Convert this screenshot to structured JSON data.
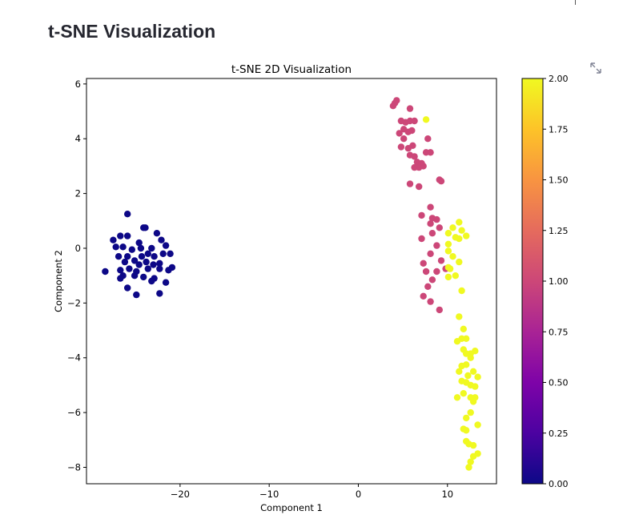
{
  "page": {
    "title": "t-SNE Visualization"
  },
  "chart_data": {
    "type": "scatter",
    "title": "t-SNE 2D Visualization",
    "xlabel": "Component 1",
    "ylabel": "Component 2",
    "xlim": [
      -30.5,
      15.5
    ],
    "ylim": [
      -8.6,
      6.2
    ],
    "xticks": [
      -20,
      -10,
      0,
      10
    ],
    "xtick_labels": [
      "−20",
      "−10",
      "0",
      "10"
    ],
    "yticks": [
      6,
      4,
      2,
      0,
      -2,
      -4,
      -6,
      -8
    ],
    "ytick_labels": [
      "6",
      "4",
      "2",
      "0",
      "−2",
      "−4",
      "−6",
      "−8"
    ],
    "colormap": "plasma",
    "colorbar": {
      "range": [
        0,
        2
      ],
      "ticks": [
        0,
        0.25,
        0.5,
        0.75,
        1.0,
        1.25,
        1.5,
        1.75,
        2.0
      ],
      "tick_labels": [
        "0.00",
        "0.25",
        "0.50",
        "0.75",
        "1.00",
        "1.25",
        "1.50",
        "1.75",
        "2.00"
      ]
    },
    "grid": false,
    "colors": {
      "class_0": "#0d0887",
      "class_1": "#cc4778",
      "class_2": "#f0f921"
    },
    "points": [
      {
        "x": -25.9,
        "y": 1.25,
        "c": 0
      },
      {
        "x": -23.9,
        "y": 0.75,
        "c": 0
      },
      {
        "x": -24.1,
        "y": 0.75,
        "c": 0
      },
      {
        "x": -27.5,
        "y": 0.3,
        "c": 0
      },
      {
        "x": -26.7,
        "y": 0.45,
        "c": 0
      },
      {
        "x": -25.9,
        "y": 0.45,
        "c": 0
      },
      {
        "x": -24.6,
        "y": 0.2,
        "c": 0
      },
      {
        "x": -22.6,
        "y": 0.55,
        "c": 0
      },
      {
        "x": -22.1,
        "y": 0.3,
        "c": 0
      },
      {
        "x": -27.2,
        "y": 0.05,
        "c": 0
      },
      {
        "x": -26.4,
        "y": 0.05,
        "c": 0
      },
      {
        "x": -25.4,
        "y": -0.05,
        "c": 0
      },
      {
        "x": -24.4,
        "y": 0.0,
        "c": 0
      },
      {
        "x": -23.2,
        "y": 0.0,
        "c": 0
      },
      {
        "x": -21.6,
        "y": 0.1,
        "c": 0
      },
      {
        "x": -26.9,
        "y": -0.3,
        "c": 0
      },
      {
        "x": -25.9,
        "y": -0.3,
        "c": 0
      },
      {
        "x": -25.1,
        "y": -0.45,
        "c": 0
      },
      {
        "x": -24.3,
        "y": -0.3,
        "c": 0
      },
      {
        "x": -23.6,
        "y": -0.2,
        "c": 0
      },
      {
        "x": -22.9,
        "y": -0.3,
        "c": 0
      },
      {
        "x": -21.9,
        "y": -0.2,
        "c": 0
      },
      {
        "x": -21.1,
        "y": -0.2,
        "c": 0
      },
      {
        "x": -26.2,
        "y": -0.5,
        "c": 0
      },
      {
        "x": -24.6,
        "y": -0.6,
        "c": 0
      },
      {
        "x": -23.8,
        "y": -0.5,
        "c": 0
      },
      {
        "x": -23.0,
        "y": -0.6,
        "c": 0
      },
      {
        "x": -22.3,
        "y": -0.55,
        "c": 0
      },
      {
        "x": -20.9,
        "y": -0.7,
        "c": 0
      },
      {
        "x": -28.4,
        "y": -0.85,
        "c": 0
      },
      {
        "x": -26.7,
        "y": -0.8,
        "c": 0
      },
      {
        "x": -25.7,
        "y": -0.75,
        "c": 0
      },
      {
        "x": -24.9,
        "y": -0.85,
        "c": 0
      },
      {
        "x": -23.6,
        "y": -0.75,
        "c": 0
      },
      {
        "x": -22.3,
        "y": -0.75,
        "c": 0
      },
      {
        "x": -21.3,
        "y": -0.8,
        "c": 0
      },
      {
        "x": -26.4,
        "y": -1.0,
        "c": 0
      },
      {
        "x": -25.1,
        "y": -1.0,
        "c": 0
      },
      {
        "x": -24.1,
        "y": -1.05,
        "c": 0
      },
      {
        "x": -22.9,
        "y": -1.1,
        "c": 0
      },
      {
        "x": -21.6,
        "y": -1.25,
        "c": 0
      },
      {
        "x": -26.7,
        "y": -1.1,
        "c": 0
      },
      {
        "x": -25.9,
        "y": -1.45,
        "c": 0
      },
      {
        "x": -24.9,
        "y": -1.7,
        "c": 0
      },
      {
        "x": -22.3,
        "y": -1.65,
        "c": 0
      },
      {
        "x": -23.2,
        "y": -1.2,
        "c": 0
      },
      {
        "x": 4.3,
        "y": 5.4,
        "c": 1
      },
      {
        "x": 3.9,
        "y": 5.2,
        "c": 1
      },
      {
        "x": 4.1,
        "y": 5.3,
        "c": 1
      },
      {
        "x": 5.8,
        "y": 5.1,
        "c": 1
      },
      {
        "x": 4.8,
        "y": 4.65,
        "c": 1
      },
      {
        "x": 5.3,
        "y": 4.6,
        "c": 1
      },
      {
        "x": 5.8,
        "y": 4.65,
        "c": 1
      },
      {
        "x": 6.3,
        "y": 4.65,
        "c": 1
      },
      {
        "x": 5.1,
        "y": 4.35,
        "c": 1
      },
      {
        "x": 4.6,
        "y": 4.2,
        "c": 1
      },
      {
        "x": 5.6,
        "y": 4.25,
        "c": 1
      },
      {
        "x": 6.0,
        "y": 4.3,
        "c": 1
      },
      {
        "x": 5.1,
        "y": 4.0,
        "c": 1
      },
      {
        "x": 7.8,
        "y": 4.0,
        "c": 1
      },
      {
        "x": 4.8,
        "y": 3.7,
        "c": 1
      },
      {
        "x": 5.6,
        "y": 3.65,
        "c": 1
      },
      {
        "x": 6.1,
        "y": 3.75,
        "c": 1
      },
      {
        "x": 5.8,
        "y": 3.4,
        "c": 1
      },
      {
        "x": 6.3,
        "y": 3.35,
        "c": 1
      },
      {
        "x": 7.6,
        "y": 3.5,
        "c": 1
      },
      {
        "x": 8.1,
        "y": 3.5,
        "c": 1
      },
      {
        "x": 6.6,
        "y": 3.15,
        "c": 1
      },
      {
        "x": 7.1,
        "y": 3.1,
        "c": 1
      },
      {
        "x": 7.3,
        "y": 3.0,
        "c": 1
      },
      {
        "x": 6.3,
        "y": 2.95,
        "c": 1
      },
      {
        "x": 6.8,
        "y": 2.95,
        "c": 1
      },
      {
        "x": 9.1,
        "y": 2.5,
        "c": 1
      },
      {
        "x": 9.3,
        "y": 2.45,
        "c": 1
      },
      {
        "x": 5.8,
        "y": 2.35,
        "c": 1
      },
      {
        "x": 6.8,
        "y": 2.25,
        "c": 1
      },
      {
        "x": 8.1,
        "y": 1.5,
        "c": 1
      },
      {
        "x": 7.1,
        "y": 1.2,
        "c": 1
      },
      {
        "x": 8.3,
        "y": 1.1,
        "c": 1
      },
      {
        "x": 8.8,
        "y": 1.05,
        "c": 1
      },
      {
        "x": 8.1,
        "y": 0.9,
        "c": 1
      },
      {
        "x": 9.1,
        "y": 0.75,
        "c": 1
      },
      {
        "x": 8.3,
        "y": 0.55,
        "c": 1
      },
      {
        "x": 7.1,
        "y": 0.35,
        "c": 1
      },
      {
        "x": 8.8,
        "y": 0.1,
        "c": 1
      },
      {
        "x": 8.1,
        "y": -0.2,
        "c": 1
      },
      {
        "x": 9.3,
        "y": -0.45,
        "c": 1
      },
      {
        "x": 7.3,
        "y": -0.55,
        "c": 1
      },
      {
        "x": 9.8,
        "y": -0.75,
        "c": 1
      },
      {
        "x": 7.6,
        "y": -0.85,
        "c": 1
      },
      {
        "x": 8.8,
        "y": -0.85,
        "c": 1
      },
      {
        "x": 8.3,
        "y": -1.15,
        "c": 1
      },
      {
        "x": 7.8,
        "y": -1.4,
        "c": 1
      },
      {
        "x": 7.3,
        "y": -1.75,
        "c": 1
      },
      {
        "x": 8.1,
        "y": -1.95,
        "c": 1
      },
      {
        "x": 9.1,
        "y": -2.25,
        "c": 1
      },
      {
        "x": 7.6,
        "y": 4.7,
        "c": 2
      },
      {
        "x": 11.3,
        "y": 0.95,
        "c": 2
      },
      {
        "x": 10.6,
        "y": 0.75,
        "c": 2
      },
      {
        "x": 11.6,
        "y": 0.65,
        "c": 2
      },
      {
        "x": 10.1,
        "y": 0.55,
        "c": 2
      },
      {
        "x": 10.9,
        "y": 0.4,
        "c": 2
      },
      {
        "x": 11.3,
        "y": 0.35,
        "c": 2
      },
      {
        "x": 12.1,
        "y": 0.45,
        "c": 2
      },
      {
        "x": 10.1,
        "y": 0.15,
        "c": 2
      },
      {
        "x": 10.1,
        "y": -0.1,
        "c": 2
      },
      {
        "x": 10.6,
        "y": -0.3,
        "c": 2
      },
      {
        "x": 11.3,
        "y": -0.5,
        "c": 2
      },
      {
        "x": 10.1,
        "y": -0.7,
        "c": 2
      },
      {
        "x": 10.3,
        "y": -0.75,
        "c": 2
      },
      {
        "x": 10.1,
        "y": -1.05,
        "c": 2
      },
      {
        "x": 10.9,
        "y": -1.0,
        "c": 2
      },
      {
        "x": 11.6,
        "y": -1.55,
        "c": 2
      },
      {
        "x": 11.3,
        "y": -2.5,
        "c": 2
      },
      {
        "x": 11.8,
        "y": -2.95,
        "c": 2
      },
      {
        "x": 11.6,
        "y": -3.3,
        "c": 2
      },
      {
        "x": 12.1,
        "y": -3.3,
        "c": 2
      },
      {
        "x": 11.1,
        "y": -3.4,
        "c": 2
      },
      {
        "x": 11.8,
        "y": -3.7,
        "c": 2
      },
      {
        "x": 12.6,
        "y": -3.85,
        "c": 2
      },
      {
        "x": 13.1,
        "y": -3.75,
        "c": 2
      },
      {
        "x": 12.1,
        "y": -3.85,
        "c": 2
      },
      {
        "x": 12.6,
        "y": -4.0,
        "c": 2
      },
      {
        "x": 12.1,
        "y": -4.25,
        "c": 2
      },
      {
        "x": 11.6,
        "y": -4.3,
        "c": 2
      },
      {
        "x": 11.3,
        "y": -4.5,
        "c": 2
      },
      {
        "x": 12.9,
        "y": -4.5,
        "c": 2
      },
      {
        "x": 12.3,
        "y": -4.65,
        "c": 2
      },
      {
        "x": 13.4,
        "y": -4.7,
        "c": 2
      },
      {
        "x": 11.6,
        "y": -4.85,
        "c": 2
      },
      {
        "x": 12.1,
        "y": -4.9,
        "c": 2
      },
      {
        "x": 12.6,
        "y": -5.0,
        "c": 2
      },
      {
        "x": 13.1,
        "y": -5.05,
        "c": 2
      },
      {
        "x": 11.8,
        "y": -5.3,
        "c": 2
      },
      {
        "x": 12.6,
        "y": -5.45,
        "c": 2
      },
      {
        "x": 13.1,
        "y": -5.45,
        "c": 2
      },
      {
        "x": 11.1,
        "y": -5.45,
        "c": 2
      },
      {
        "x": 12.9,
        "y": -5.6,
        "c": 2
      },
      {
        "x": 12.6,
        "y": -6.0,
        "c": 2
      },
      {
        "x": 12.1,
        "y": -6.2,
        "c": 2
      },
      {
        "x": 11.8,
        "y": -6.6,
        "c": 2
      },
      {
        "x": 13.4,
        "y": -6.45,
        "c": 2
      },
      {
        "x": 12.1,
        "y": -6.65,
        "c": 2
      },
      {
        "x": 12.1,
        "y": -7.05,
        "c": 2
      },
      {
        "x": 12.4,
        "y": -7.15,
        "c": 2
      },
      {
        "x": 12.9,
        "y": -7.2,
        "c": 2
      },
      {
        "x": 13.4,
        "y": -7.5,
        "c": 2
      },
      {
        "x": 12.6,
        "y": -7.8,
        "c": 2
      },
      {
        "x": 12.4,
        "y": -8.0,
        "c": 2
      },
      {
        "x": 12.9,
        "y": -7.6,
        "c": 2
      }
    ]
  }
}
